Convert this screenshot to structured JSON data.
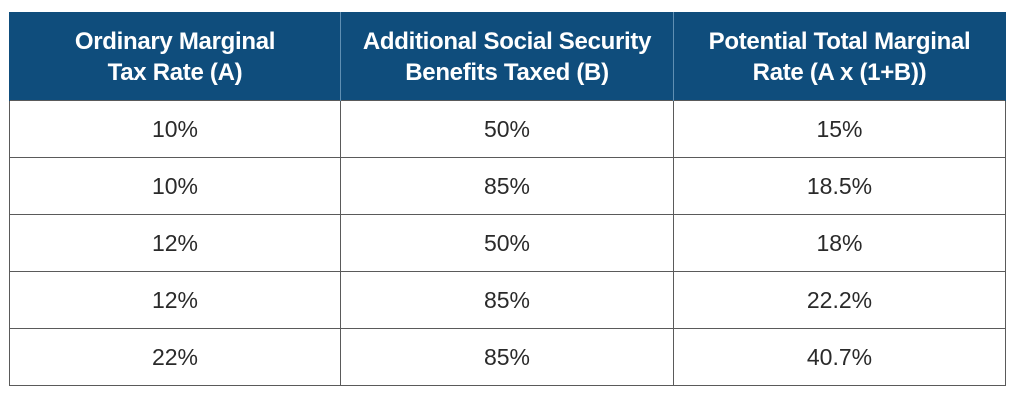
{
  "table": {
    "headers": [
      [
        "Ordinary Marginal",
        "Tax Rate (A)"
      ],
      [
        "Additional Social Security",
        "Benefits Taxed (B)"
      ],
      [
        "Potential Total Marginal",
        "Rate (A x (1+B))"
      ]
    ],
    "rows": [
      [
        "10%",
        "50%",
        "15%"
      ],
      [
        "10%",
        "85%",
        "18.5%"
      ],
      [
        "12%",
        "50%",
        "18%"
      ],
      [
        "12%",
        "85%",
        "22.2%"
      ],
      [
        "22%",
        "85%",
        "40.7%"
      ]
    ]
  },
  "colors": {
    "header_background": "#0f4d7c",
    "header_text": "#ffffff",
    "cell_border": "#5a5a5a",
    "cell_text": "#2a2a2a"
  }
}
